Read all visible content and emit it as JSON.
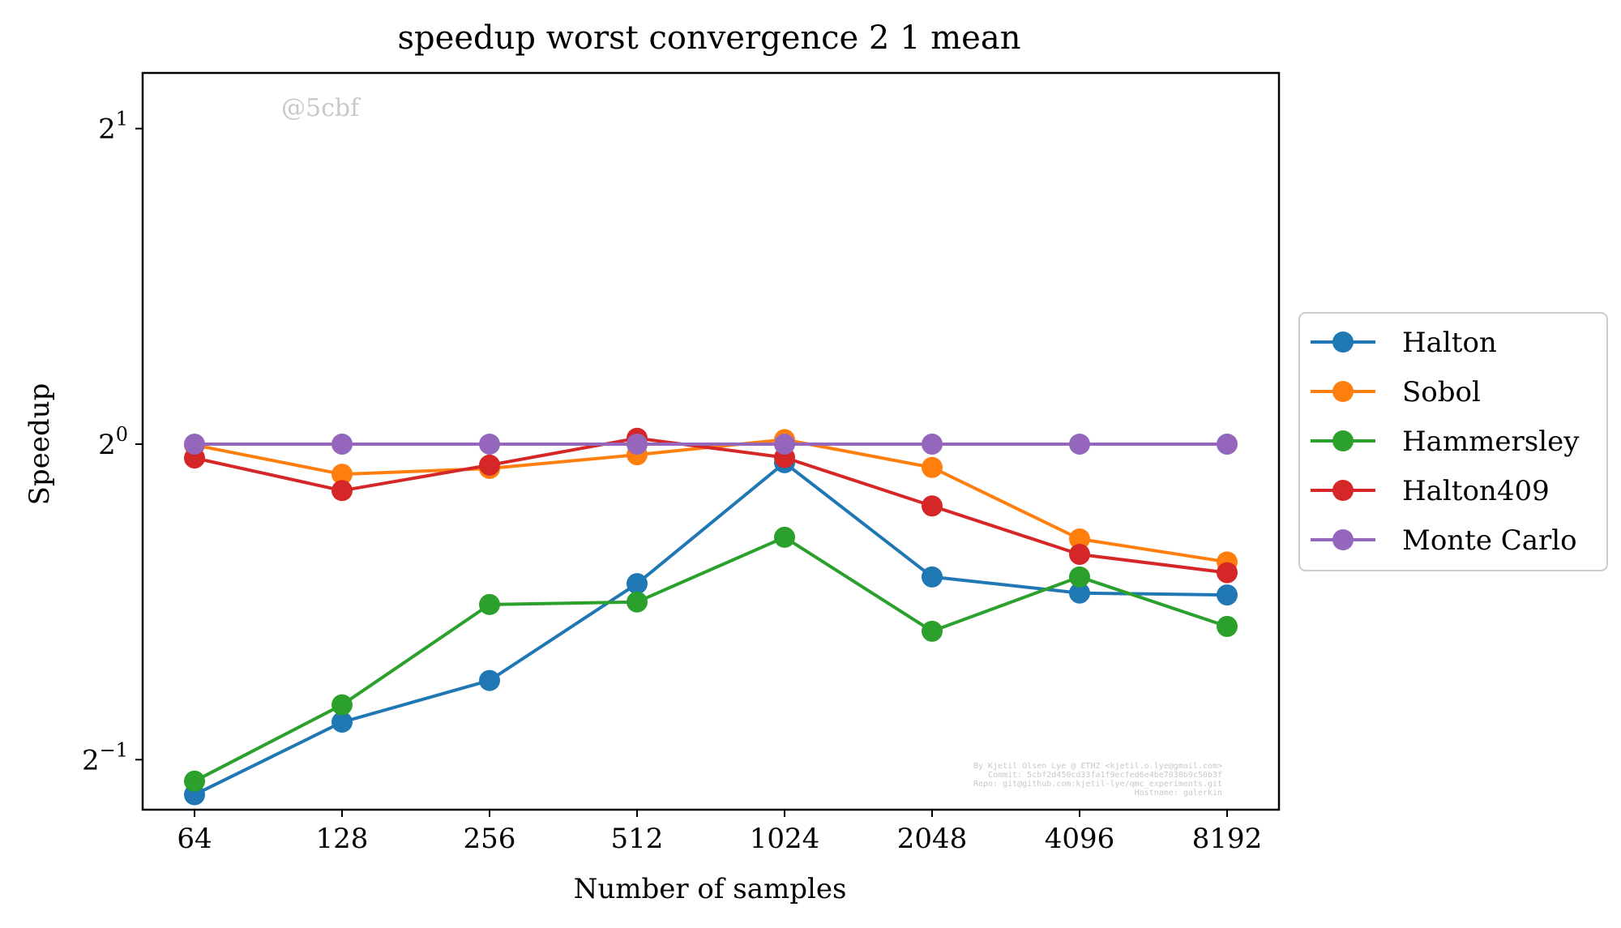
{
  "chart_data": {
    "type": "line",
    "title": "speedup worst convergence 2 1 mean",
    "xlabel": "Number of samples",
    "ylabel": "Speedup",
    "x_scale": "log2",
    "y_scale": "log2",
    "x": [
      64,
      128,
      256,
      512,
      1024,
      2048,
      4096,
      8192
    ],
    "xtick_labels": [
      "64",
      "128",
      "256",
      "512",
      "1024",
      "2048",
      "4096",
      "8192"
    ],
    "ytick_labels": [
      {
        "base": "2",
        "exp": "1",
        "value": 2
      },
      {
        "base": "2",
        "exp": "0",
        "value": 1
      },
      {
        "base": "2",
        "exp": "−1",
        "value": 0.5
      }
    ],
    "ylim": [
      0.448,
      2.26
    ],
    "grid": false,
    "legend_position": "center-right, outside plot",
    "series": [
      {
        "name": "Halton",
        "color": "#1f77b4",
        "values": [
          0.463,
          0.543,
          0.595,
          0.736,
          0.96,
          0.747,
          0.721,
          0.718
        ]
      },
      {
        "name": "Sobol",
        "color": "#ff7f0e",
        "values": [
          0.998,
          0.936,
          0.948,
          0.977,
          1.01,
          0.95,
          0.812,
          0.772
        ]
      },
      {
        "name": "Hammersley",
        "color": "#2ca02c",
        "values": [
          0.477,
          0.564,
          0.703,
          0.707,
          0.815,
          0.663,
          0.747,
          0.67
        ]
      },
      {
        "name": "Halton409",
        "color": "#d62728",
        "values": [
          0.97,
          0.903,
          0.955,
          1.013,
          0.971,
          0.873,
          0.785,
          0.754
        ]
      },
      {
        "name": "Monte Carlo",
        "color": "#9467bd",
        "values": [
          1,
          1,
          1,
          1,
          1,
          1,
          1,
          1
        ]
      }
    ]
  },
  "watermark": "@5cbf",
  "credits": [
    "By Kjetil Olsen Lye @ ETHZ <kjetil.o.lye@gmail.com>",
    "Commit: 5cbf2d450cd33fa1f9ecfed6e4be7030b9c50b3f",
    "Repo: git@github.com:kjetil-lye/qmc_experiments.git",
    "Hostname: galerkin"
  ]
}
